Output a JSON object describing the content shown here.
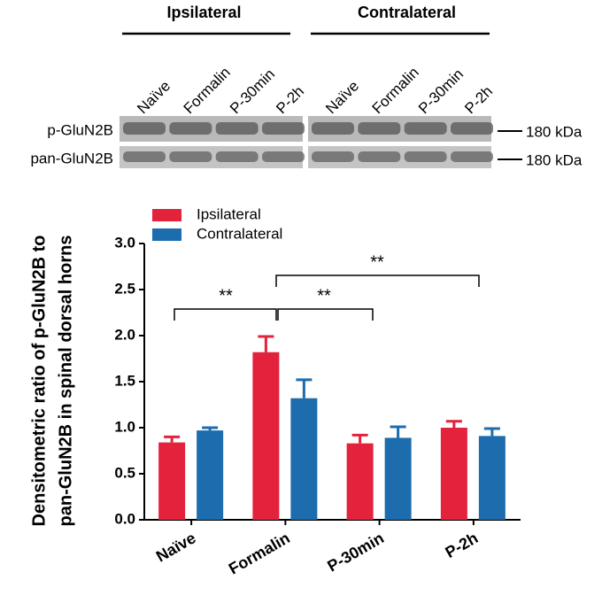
{
  "blot": {
    "groups": [
      "Ipsilateral",
      "Contralateral"
    ],
    "lanes": [
      [
        "Naïve",
        "Formalin",
        "P-30min",
        "P-2h"
      ],
      [
        "Naïve",
        "Formalin",
        "P-30min",
        "P-2h"
      ]
    ],
    "rows": [
      {
        "label": "p-GluN2B",
        "size": "180 kDa"
      },
      {
        "label": "pan-GluN2B",
        "size": "180 kDa"
      }
    ]
  },
  "chart_data": {
    "type": "bar",
    "ylabel": [
      "Densitometric ratio of p-GluN2B to",
      "pan-GluN2B in spinal dorsal horns"
    ],
    "categories": [
      "Naïve",
      "Formalin",
      "P-30min",
      "P-2h"
    ],
    "series": [
      {
        "name": "Ipsilateral",
        "color": "#e3223c",
        "values": [
          0.84,
          1.82,
          0.83,
          1.0
        ],
        "errors": [
          0.06,
          0.17,
          0.09,
          0.07
        ]
      },
      {
        "name": "Contralateral",
        "color": "#1d6cae",
        "values": [
          0.97,
          1.32,
          0.89,
          0.91
        ],
        "errors": [
          0.03,
          0.2,
          0.12,
          0.08
        ]
      }
    ],
    "ylim": [
      0,
      3
    ],
    "yticks": [
      {
        "value": 0,
        "label": "0.0"
      },
      0.5,
      {
        "value": 1,
        "label": "1.0"
      },
      1.5,
      {
        "value": 2,
        "label": "2.0"
      },
      2.5,
      {
        "value": 3,
        "label": "3.0"
      }
    ],
    "annotations": [
      "**",
      "**",
      "**"
    ],
    "legend": "top-left"
  }
}
